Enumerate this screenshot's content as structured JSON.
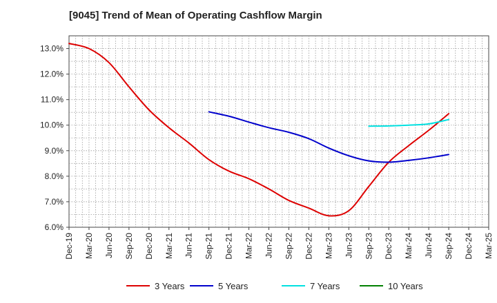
{
  "chart_data": {
    "type": "line",
    "title": "[9045]  Trend of Mean of Operating Cashflow Margin",
    "xlabel": "",
    "ylabel": "",
    "ylim": [
      6.0,
      13.5
    ],
    "yticks": [
      6.0,
      7.0,
      8.0,
      9.0,
      10.0,
      11.0,
      12.0,
      13.0
    ],
    "ytick_labels": [
      "6.0%",
      "7.0%",
      "8.0%",
      "9.0%",
      "10.0%",
      "11.0%",
      "12.0%",
      "13.0%"
    ],
    "categories": [
      "Dec-19",
      "Mar-20",
      "Jun-20",
      "Sep-20",
      "Dec-20",
      "Mar-21",
      "Jun-21",
      "Sep-21",
      "Dec-21",
      "Mar-22",
      "Jun-22",
      "Sep-22",
      "Dec-22",
      "Mar-23",
      "Jun-23",
      "Sep-23",
      "Dec-23",
      "Mar-24",
      "Jun-24",
      "Sep-24",
      "Dec-24",
      "Mar-25"
    ],
    "grid": true,
    "legend_position": "bottom",
    "series": [
      {
        "name": "3 Years",
        "color": "#dd0000",
        "values": [
          13.2,
          13.0,
          12.45,
          11.5,
          10.6,
          9.9,
          9.3,
          8.65,
          8.2,
          7.9,
          7.5,
          7.05,
          6.75,
          6.45,
          6.65,
          7.6,
          8.55,
          9.2,
          9.8,
          10.45,
          null,
          null
        ]
      },
      {
        "name": "5 Years",
        "color": "#0000cc",
        "values": [
          null,
          null,
          null,
          null,
          null,
          null,
          null,
          10.52,
          10.35,
          10.12,
          9.9,
          9.72,
          9.47,
          9.1,
          8.8,
          8.6,
          8.55,
          8.62,
          8.72,
          8.85,
          null,
          null
        ]
      },
      {
        "name": "7 Years",
        "color": "#00e0e0",
        "values": [
          null,
          null,
          null,
          null,
          null,
          null,
          null,
          null,
          null,
          null,
          null,
          null,
          null,
          null,
          null,
          9.96,
          9.97,
          10.0,
          10.05,
          10.22,
          null,
          null
        ]
      },
      {
        "name": "10 Years",
        "color": "#008000",
        "values": [
          null,
          null,
          null,
          null,
          null,
          null,
          null,
          null,
          null,
          null,
          null,
          null,
          null,
          null,
          null,
          null,
          null,
          null,
          null,
          null,
          null,
          null
        ]
      }
    ]
  }
}
